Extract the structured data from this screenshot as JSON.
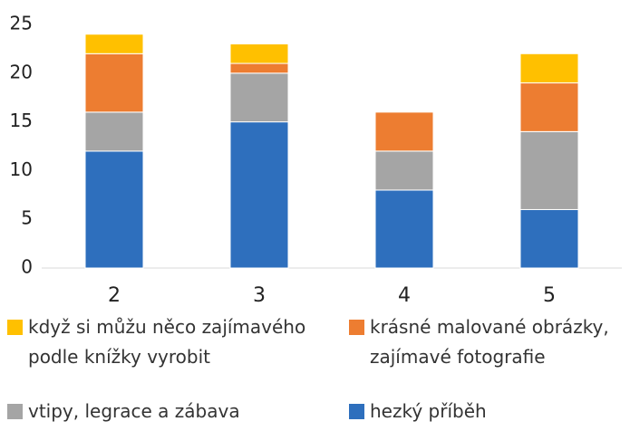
{
  "chart_data": {
    "type": "stacked_bar",
    "categories": [
      "2",
      "3",
      "4",
      "5"
    ],
    "series": [
      {
        "name": "když si můžu něco zajímavého podle knížky vyrobit",
        "color": "#ffc000",
        "values": [
          2,
          2,
          0,
          3
        ]
      },
      {
        "name": "krásné malované obrázky, zajímavé fotografie",
        "color": "#ed7d31",
        "values": [
          6,
          1,
          4,
          5
        ]
      },
      {
        "name": "vtipy, legrace a zábava",
        "color": "#a5a5a5",
        "values": [
          4,
          5,
          4,
          8
        ]
      },
      {
        "name": "hezký příběh",
        "color": "#2e6fbd",
        "values": [
          12,
          15,
          8,
          6
        ]
      }
    ],
    "ylim": [
      0,
      25
    ],
    "yticks": [
      0,
      5,
      10,
      15,
      20,
      25
    ],
    "grid": false,
    "legend": "bottom"
  }
}
